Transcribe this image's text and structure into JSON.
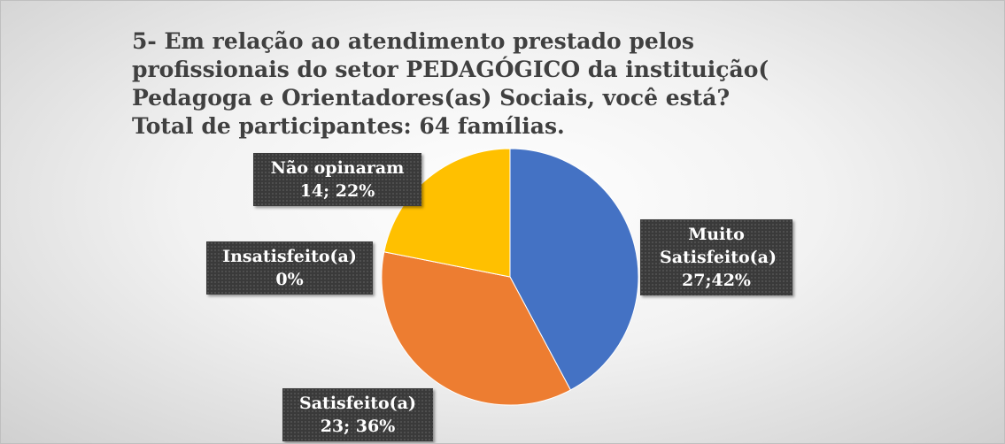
{
  "chart_data": {
    "type": "pie",
    "title": "5- Em relação ao atendimento prestado pelos profissionais do setor PEDAGÓGICO da instituição( Pedagoga e Orientadores(as) Sociais, você está?",
    "subtitle": "Total de participantes: 64 famílias.",
    "categories": [
      "Muito Satisfeito(a)",
      "Satisfeito(a)",
      "Insatisfeito(a)",
      "Não opinaram"
    ],
    "values": [
      27,
      23,
      0,
      14
    ],
    "value_labels": [
      "27;42%",
      "23; 36%",
      "0%",
      "14; 22%"
    ],
    "colors": [
      "#4472c4",
      "#ed7d31",
      "#a5a5a5",
      "#ffc000"
    ]
  }
}
